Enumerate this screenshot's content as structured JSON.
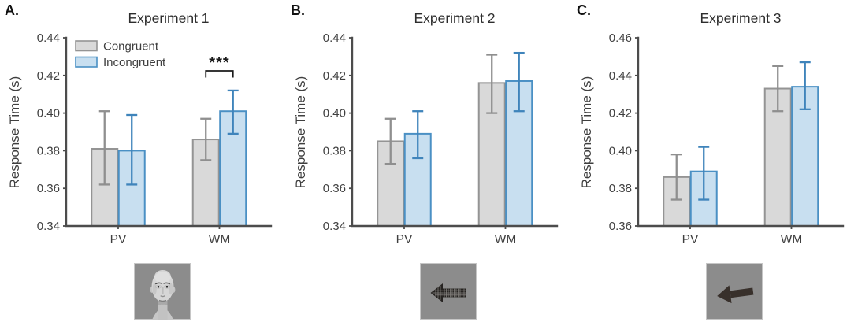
{
  "panels": [
    {
      "letter": "A.",
      "title": "Experiment 1",
      "ylabel": "Response Time (s)",
      "stimulus": "face"
    },
    {
      "letter": "B.",
      "title": "Experiment 2",
      "ylabel": "Response Time (s)",
      "stimulus": "striped-arrow-left"
    },
    {
      "letter": "C.",
      "title": "Experiment 3",
      "ylabel": "Response Time (s)",
      "stimulus": "solid-arrow-left"
    }
  ],
  "colors": {
    "congruent_fill": "#d9d9d9",
    "congruent_edge": "#949494",
    "congruent_error": "#8f8f8f",
    "incongruent_fill": "#c8dff0",
    "incongruent_edge": "#4a90c4",
    "incongruent_error": "#3f84bb",
    "axis": "#4c4c4c",
    "text": "#3f3f3f",
    "significance": "#1a1a1a",
    "stimulus_background": "#8c8c8c"
  },
  "chart_data": [
    {
      "type": "bar",
      "title": "Experiment 1",
      "xlabel": "",
      "ylabel": "Response Time (s)",
      "categories": [
        "PV",
        "WM"
      ],
      "ylim": [
        0.34,
        0.44
      ],
      "yticks": [
        0.34,
        0.36,
        0.38,
        0.4,
        0.42,
        0.44
      ],
      "grid": false,
      "legend": true,
      "legend_position": "top-left",
      "series": [
        {
          "name": "Congruent",
          "values": [
            0.381,
            0.386
          ],
          "err_low": [
            0.362,
            0.375
          ],
          "err_high": [
            0.401,
            0.397
          ]
        },
        {
          "name": "Incongruent",
          "values": [
            0.38,
            0.401
          ],
          "err_low": [
            0.362,
            0.389
          ],
          "err_high": [
            0.399,
            0.412
          ]
        }
      ],
      "significance": {
        "category": "WM",
        "label": "***"
      }
    },
    {
      "type": "bar",
      "title": "Experiment 2",
      "xlabel": "",
      "ylabel": "Response Time (s)",
      "categories": [
        "PV",
        "WM"
      ],
      "ylim": [
        0.34,
        0.44
      ],
      "yticks": [
        0.34,
        0.36,
        0.38,
        0.4,
        0.42,
        0.44
      ],
      "grid": false,
      "legend": false,
      "series": [
        {
          "name": "Congruent",
          "values": [
            0.385,
            0.416
          ],
          "err_low": [
            0.373,
            0.4
          ],
          "err_high": [
            0.397,
            0.431
          ]
        },
        {
          "name": "Incongruent",
          "values": [
            0.389,
            0.417
          ],
          "err_low": [
            0.376,
            0.401
          ],
          "err_high": [
            0.401,
            0.432
          ]
        }
      ]
    },
    {
      "type": "bar",
      "title": "Experiment 3",
      "xlabel": "",
      "ylabel": "Response Time (s)",
      "categories": [
        "PV",
        "WM"
      ],
      "ylim": [
        0.36,
        0.46
      ],
      "yticks": [
        0.36,
        0.38,
        0.4,
        0.42,
        0.44,
        0.46
      ],
      "grid": false,
      "legend": false,
      "series": [
        {
          "name": "Congruent",
          "values": [
            0.386,
            0.433
          ],
          "err_low": [
            0.374,
            0.421
          ],
          "err_high": [
            0.398,
            0.445
          ]
        },
        {
          "name": "Incongruent",
          "values": [
            0.389,
            0.434
          ],
          "err_low": [
            0.374,
            0.422
          ],
          "err_high": [
            0.402,
            0.447
          ]
        }
      ]
    }
  ]
}
